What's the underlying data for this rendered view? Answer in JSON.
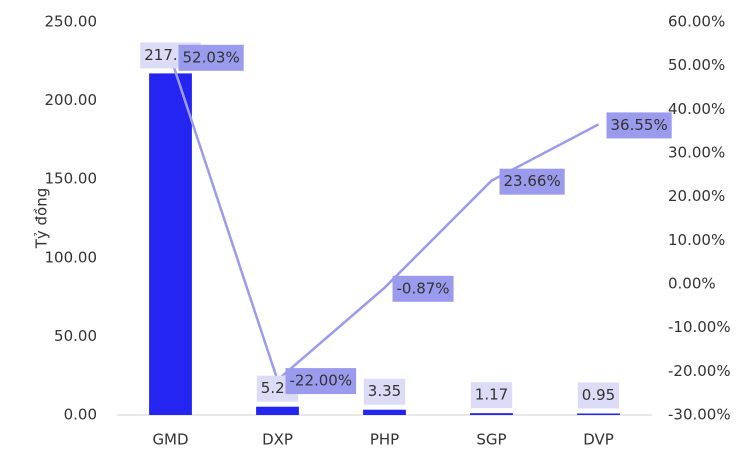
{
  "chart_data": {
    "type": "bar+line",
    "y_label": "Tỷ đồng",
    "categories": [
      "GMD",
      "DXP",
      "PHP",
      "SGP",
      "DVP"
    ],
    "series": [
      {
        "type": "bar",
        "color": "#2525f2",
        "values": [
          217.3,
          5.28,
          3.35,
          1.17,
          0.95
        ],
        "value_labels": [
          "217.30",
          "5.28",
          "3.35",
          "1.17",
          "0.95"
        ]
      },
      {
        "type": "line",
        "axis": "y2",
        "color": "#9b9bee",
        "values": [
          52.03,
          -22.0,
          -0.87,
          23.66,
          36.55
        ],
        "value_labels": [
          "52.03%",
          "-22.00%",
          "-0.87%",
          "23.66%",
          "36.55%"
        ]
      }
    ],
    "ylim": [
      0,
      250
    ],
    "yticks": [
      {
        "value": 0,
        "label": "0.00"
      },
      {
        "value": 50,
        "label": "50.00"
      },
      {
        "value": 100,
        "label": "100.00"
      },
      {
        "value": 150,
        "label": "150.00"
      },
      {
        "value": 200,
        "label": "200.00"
      },
      {
        "value": 250,
        "label": "250.00"
      }
    ],
    "y2lim": [
      -30,
      60
    ],
    "y2ticks": [
      {
        "value": -30,
        "label": "-30.00%"
      },
      {
        "value": -20,
        "label": "-20.00%"
      },
      {
        "value": -10,
        "label": "-10.00%"
      },
      {
        "value": 0,
        "label": "0.00%"
      },
      {
        "value": 10,
        "label": "10.00%"
      },
      {
        "value": 20,
        "label": "20.00%"
      },
      {
        "value": 30,
        "label": "30.00%"
      },
      {
        "value": 40,
        "label": "40.00%"
      },
      {
        "value": 50,
        "label": "50.00%"
      },
      {
        "value": 60,
        "label": "60.00%"
      }
    ]
  }
}
